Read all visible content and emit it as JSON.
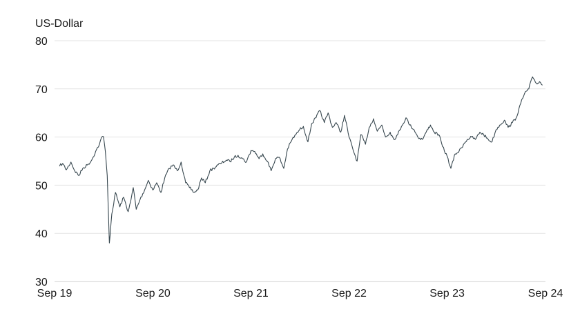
{
  "chart_data": {
    "type": "line",
    "unit_label": "US-Dollar",
    "ylim": [
      30,
      80
    ],
    "y_ticks": [
      30,
      40,
      50,
      60,
      70,
      80
    ],
    "xlim": [
      "2019-09-01",
      "2024-09-01"
    ],
    "x_ticks": [
      {
        "label": "Sep 19",
        "date": "2019-09-01"
      },
      {
        "label": "Sep 20",
        "date": "2020-09-01"
      },
      {
        "label": "Sep 21",
        "date": "2021-09-01"
      },
      {
        "label": "Sep 22",
        "date": "2022-09-01"
      },
      {
        "label": "Sep 23",
        "date": "2023-09-01"
      },
      {
        "label": "Sep 24",
        "date": "2024-09-01"
      }
    ],
    "grid": true,
    "legend": "none",
    "series_color": "#37474f",
    "series": [
      {
        "x": [
          "2019-09-20",
          "2019-10-01",
          "2019-10-15",
          "2019-11-01",
          "2019-11-15",
          "2019-12-01",
          "2019-12-15",
          "2020-01-01",
          "2020-01-15",
          "2020-02-01",
          "2020-02-15",
          "2020-02-22",
          "2020-03-01",
          "2020-03-08",
          "2020-03-15",
          "2020-03-23",
          "2020-04-01",
          "2020-04-15",
          "2020-05-01",
          "2020-05-15",
          "2020-06-01",
          "2020-06-10",
          "2020-06-20",
          "2020-07-01",
          "2020-07-15",
          "2020-08-01",
          "2020-08-15",
          "2020-09-01",
          "2020-09-15",
          "2020-10-01",
          "2020-10-15",
          "2020-11-01",
          "2020-11-15",
          "2020-12-01",
          "2020-12-15",
          "2021-01-01",
          "2021-01-15",
          "2021-02-01",
          "2021-02-15",
          "2021-03-01",
          "2021-03-15",
          "2021-04-01",
          "2021-04-15",
          "2021-05-01",
          "2021-05-15",
          "2021-06-01",
          "2021-06-15",
          "2021-07-01",
          "2021-07-15",
          "2021-08-01",
          "2021-08-15",
          "2021-09-01",
          "2021-09-15",
          "2021-10-01",
          "2021-10-15",
          "2021-11-01",
          "2021-11-15",
          "2021-12-01",
          "2021-12-15",
          "2022-01-01",
          "2022-01-15",
          "2022-02-01",
          "2022-02-15",
          "2022-03-01",
          "2022-03-15",
          "2022-04-01",
          "2022-04-15",
          "2022-05-01",
          "2022-05-15",
          "2022-06-01",
          "2022-06-15",
          "2022-07-01",
          "2022-07-15",
          "2022-08-01",
          "2022-08-15",
          "2022-09-01",
          "2022-09-15",
          "2022-10-01",
          "2022-10-15",
          "2022-11-01",
          "2022-11-15",
          "2022-12-01",
          "2022-12-15",
          "2023-01-01",
          "2023-01-15",
          "2023-02-01",
          "2023-02-15",
          "2023-03-01",
          "2023-03-15",
          "2023-04-01",
          "2023-04-15",
          "2023-05-01",
          "2023-05-15",
          "2023-06-01",
          "2023-06-15",
          "2023-07-01",
          "2023-07-15",
          "2023-08-01",
          "2023-08-15",
          "2023-09-01",
          "2023-09-15",
          "2023-10-01",
          "2023-10-15",
          "2023-11-01",
          "2023-11-15",
          "2023-12-01",
          "2023-12-15",
          "2024-01-01",
          "2024-01-15",
          "2024-02-01",
          "2024-02-15",
          "2024-03-01",
          "2024-03-15",
          "2024-04-01",
          "2024-04-15",
          "2024-05-01",
          "2024-05-15",
          "2024-06-01",
          "2024-06-15",
          "2024-07-01",
          "2024-07-15",
          "2024-08-01",
          "2024-08-10",
          "2024-08-20"
        ],
        "values": [
          54.0,
          54.5,
          53.2,
          54.8,
          53.0,
          52.0,
          53.5,
          54.2,
          55.0,
          57.0,
          58.5,
          59.8,
          60.1,
          57.0,
          52.0,
          38.0,
          44.0,
          48.5,
          45.5,
          47.5,
          44.5,
          46.5,
          49.5,
          45.0,
          47.0,
          49.0,
          51.0,
          49.0,
          50.5,
          48.5,
          51.5,
          53.5,
          54.2,
          53.0,
          54.8,
          50.5,
          49.5,
          48.5,
          49.0,
          51.5,
          50.5,
          53.0,
          53.5,
          54.2,
          54.6,
          55.2,
          54.9,
          55.8,
          56.2,
          55.5,
          54.8,
          57.2,
          57.0,
          55.5,
          56.5,
          55.0,
          53.0,
          55.5,
          55.8,
          53.5,
          57.5,
          59.5,
          60.5,
          61.5,
          62.2,
          59.0,
          62.8,
          64.0,
          65.5,
          63.0,
          65.0,
          62.0,
          63.0,
          61.0,
          64.5,
          60.0,
          57.5,
          55.0,
          60.5,
          58.5,
          62.0,
          63.8,
          61.2,
          62.5,
          60.0,
          61.0,
          59.5,
          60.5,
          62.2,
          64.0,
          62.5,
          61.5,
          60.0,
          59.5,
          61.0,
          62.5,
          61.0,
          60.5,
          58.0,
          56.0,
          53.5,
          56.5,
          57.0,
          58.5,
          59.5,
          60.0,
          59.5,
          61.0,
          60.5,
          59.5,
          59.0,
          61.5,
          62.5,
          63.5,
          62.0,
          63.0,
          64.0,
          67.0,
          69.0,
          70.0,
          72.5,
          71.0,
          71.5,
          70.8
        ]
      }
    ]
  }
}
